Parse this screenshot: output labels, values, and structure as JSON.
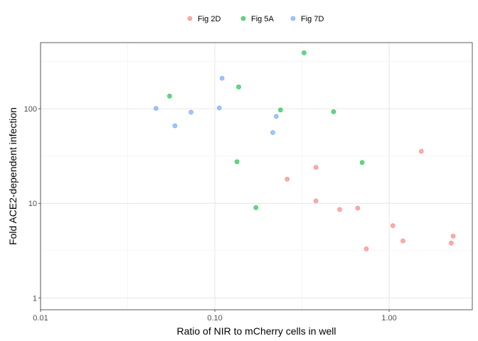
{
  "chart_data": {
    "type": "scatter",
    "title": "",
    "xlabel": "Ratio of NIR to mCherry cells in well",
    "ylabel": "Fold ACE2-dependent infection",
    "x_scale": "log10",
    "y_scale": "log10",
    "xlim": [
      0.01,
      3.0
    ],
    "ylim": [
      0.75,
      500
    ],
    "x_ticks": [
      {
        "value": 0.01,
        "label": "0.01"
      },
      {
        "value": 0.1,
        "label": "0.10"
      },
      {
        "value": 1.0,
        "label": "1.00"
      }
    ],
    "y_ticks": [
      {
        "value": 1,
        "label": "1"
      },
      {
        "value": 10,
        "label": "10"
      },
      {
        "value": 100,
        "label": "100"
      }
    ],
    "grid": true,
    "legend_position": "top",
    "series": [
      {
        "name": "Fig 2D",
        "color": "#F8766D",
        "points": [
          {
            "x": 0.26,
            "y": 18
          },
          {
            "x": 0.38,
            "y": 24
          },
          {
            "x": 0.38,
            "y": 10.6
          },
          {
            "x": 0.52,
            "y": 8.6
          },
          {
            "x": 0.66,
            "y": 8.9
          },
          {
            "x": 0.74,
            "y": 3.3
          },
          {
            "x": 1.05,
            "y": 5.8
          },
          {
            "x": 1.2,
            "y": 4.0
          },
          {
            "x": 1.53,
            "y": 35.5
          },
          {
            "x": 2.27,
            "y": 3.8
          },
          {
            "x": 2.33,
            "y": 4.5
          }
        ]
      },
      {
        "name": "Fig 5A",
        "color": "#00BA38",
        "points": [
          {
            "x": 0.055,
            "y": 136
          },
          {
            "x": 0.134,
            "y": 27.5
          },
          {
            "x": 0.137,
            "y": 170
          },
          {
            "x": 0.172,
            "y": 9.0
          },
          {
            "x": 0.238,
            "y": 97
          },
          {
            "x": 0.325,
            "y": 390
          },
          {
            "x": 0.48,
            "y": 93
          },
          {
            "x": 0.7,
            "y": 27
          }
        ]
      },
      {
        "name": "Fig 7D",
        "color": "#619CFF",
        "points": [
          {
            "x": 0.046,
            "y": 101
          },
          {
            "x": 0.059,
            "y": 66
          },
          {
            "x": 0.073,
            "y": 92
          },
          {
            "x": 0.106,
            "y": 102
          },
          {
            "x": 0.11,
            "y": 210
          },
          {
            "x": 0.215,
            "y": 56
          },
          {
            "x": 0.225,
            "y": 83
          }
        ]
      }
    ]
  }
}
